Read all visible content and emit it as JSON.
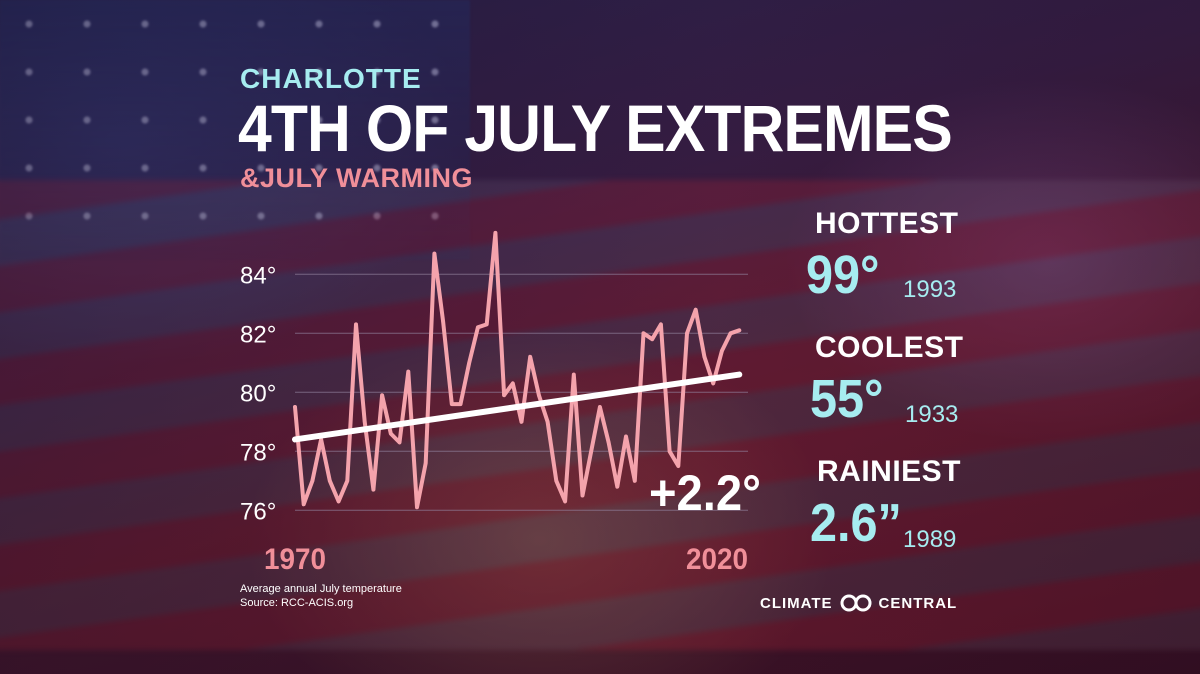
{
  "header": {
    "city": "CHARLOTTE",
    "title": "4TH OF JULY EXTREMES",
    "subtitle": "&JULY WARMING"
  },
  "stats": [
    {
      "label": "HOTTEST",
      "value": "99°",
      "year": "1993"
    },
    {
      "label": "COOLEST",
      "value": "55°",
      "year": "1933"
    },
    {
      "label": "RAINIEST",
      "value": "2.6”",
      "year": "1989"
    }
  ],
  "footnote": {
    "line1": "Average annual July temperature",
    "line2": "Source: RCC-ACIS.org"
  },
  "brand": {
    "word1": "CLIMATE",
    "word2": "CENTRAL",
    "logo_icon": "infinity-loops-icon"
  },
  "colors": {
    "series": "#f4a3ac",
    "trend": "#ffffff",
    "accent_cyan": "#a6ecf0",
    "accent_pink": "#f08f99",
    "grid": "#8f7f9a"
  },
  "chart_data": {
    "type": "line",
    "xlabel": "",
    "ylabel": "",
    "x_tick_labels": [
      {
        "value": 1970,
        "label": "1970"
      },
      {
        "value": 2020,
        "label": "2020"
      }
    ],
    "y_ticks": [
      76,
      78,
      80,
      82,
      84
    ],
    "y_tick_labels": [
      "76°",
      "78°",
      "80°",
      "82°",
      "84°"
    ],
    "xlim": [
      1970,
      2022
    ],
    "ylim": [
      75.5,
      85.5
    ],
    "grid": true,
    "series": [
      {
        "x": [
          1970,
          1971,
          1972,
          1973,
          1974,
          1975,
          1976,
          1977,
          1978,
          1979,
          1980,
          1981,
          1982,
          1983,
          1984,
          1985,
          1986,
          1987,
          1988,
          1989,
          1990,
          1991,
          1992,
          1993,
          1994,
          1995,
          1996,
          1997,
          1998,
          1999,
          2000,
          2001,
          2002,
          2003,
          2004,
          2005,
          2006,
          2007,
          2008,
          2009,
          2010,
          2011,
          2012,
          2013,
          2014,
          2015,
          2016,
          2017,
          2018,
          2019,
          2020,
          2021
        ],
        "values": [
          79.5,
          76.2,
          77.0,
          78.4,
          77.0,
          76.3,
          77.0,
          82.3,
          79.0,
          76.7,
          79.9,
          78.6,
          78.3,
          80.7,
          76.1,
          77.6,
          84.7,
          82.4,
          79.6,
          79.6,
          81.0,
          82.2,
          82.3,
          85.4,
          79.9,
          80.3,
          79.0,
          81.2,
          79.9,
          79.0,
          77.0,
          76.3,
          80.6,
          76.5,
          78.0,
          79.5,
          78.3,
          76.8,
          78.5,
          77.0,
          82.0,
          81.8,
          82.3,
          78.0,
          77.5,
          82.0,
          82.8,
          81.2,
          80.3,
          81.4,
          82.0,
          82.1
        ]
      }
    ],
    "trend": {
      "x": [
        1970,
        2021
      ],
      "values": [
        78.4,
        80.6
      ]
    },
    "annotation": "+2.2°"
  }
}
